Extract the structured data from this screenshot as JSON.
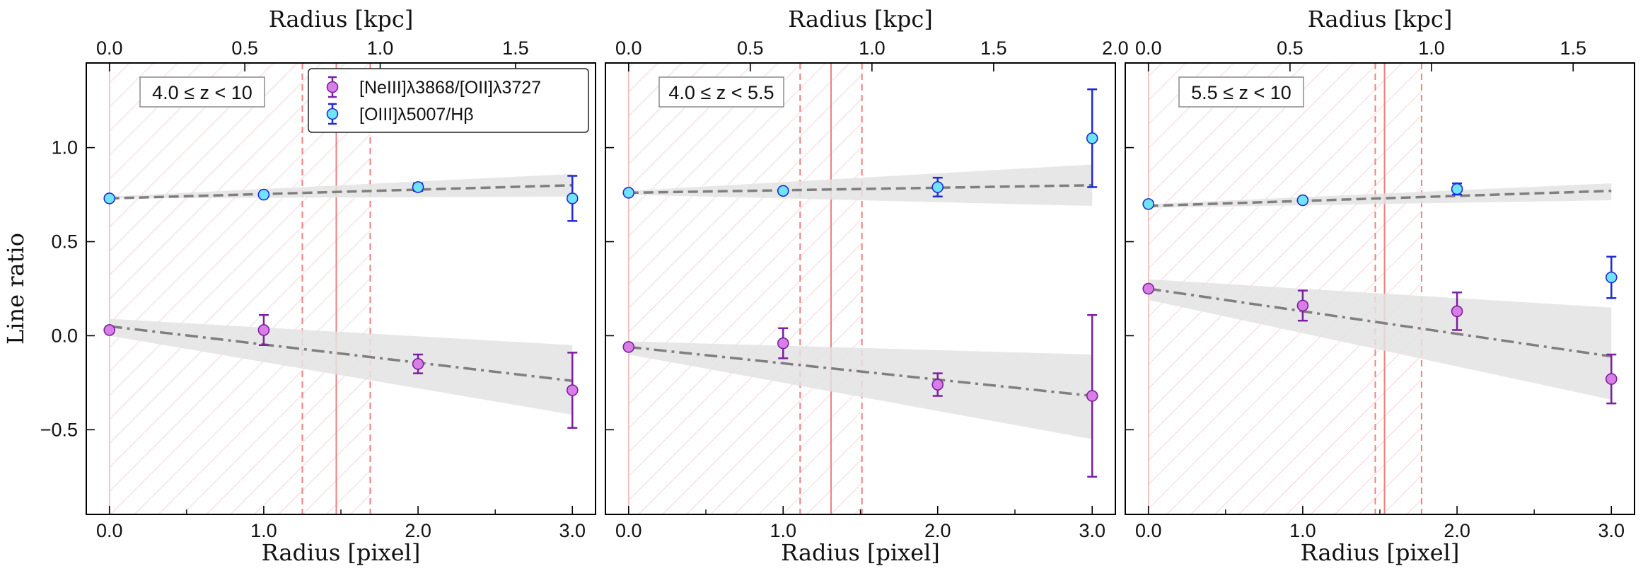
{
  "chart_data": [
    {
      "type": "scatter",
      "panel_label": "4.0 ≤ z < 10",
      "xlabel": "Radius [pixel]",
      "x2label": "Radius [kpc]",
      "ylabel": "Line ratio",
      "xticks": [
        "0.0",
        "1.0",
        "2.0",
        "3.0"
      ],
      "yticks": [
        "−0.5",
        "0.0",
        "0.5",
        "1.0"
      ],
      "x2ticks": [
        "0.0",
        "0.5",
        "1.0",
        "1.5"
      ],
      "x2_per_pixel": 0.57,
      "xlim": [
        -0.15,
        3.15
      ],
      "ylim": [
        -0.95,
        1.45
      ],
      "psf_line": 1.47,
      "psf_band": [
        1.25,
        1.69
      ],
      "series": [
        {
          "name": "[NeIII]λ3868/[OII]λ3727",
          "color": "#d97ee6",
          "edge": "#7b1fa2",
          "x": [
            0,
            1,
            2,
            3
          ],
          "y": [
            0.03,
            0.03,
            -0.15,
            -0.29
          ],
          "err": [
            0.0,
            0.08,
            0.05,
            0.2
          ]
        },
        {
          "name": "[OIII]λ5007/Hβ",
          "color": "#6ee4f4",
          "edge": "#1f2bd6",
          "x": [
            0,
            1,
            2,
            3
          ],
          "y": [
            0.73,
            0.75,
            0.79,
            0.73
          ],
          "err": [
            0.0,
            0.0,
            0.02,
            0.12
          ]
        }
      ],
      "fits": [
        {
          "style": "dashed",
          "x": [
            0,
            3
          ],
          "y": [
            0.73,
            0.8
          ],
          "band_lo": [
            0.73,
            0.74
          ],
          "band_hi": [
            0.74,
            0.86
          ]
        },
        {
          "style": "dashdot",
          "x": [
            0,
            3
          ],
          "y": [
            0.05,
            -0.24
          ],
          "band_lo": [
            0.0,
            -0.42
          ],
          "band_hi": [
            0.09,
            -0.05
          ]
        }
      ],
      "legend": true
    },
    {
      "type": "scatter",
      "panel_label": "4.0 ≤ z < 5.5",
      "xlabel": "Radius [pixel]",
      "x2label": "Radius [kpc]",
      "xticks": [
        "0.0",
        "1.0",
        "2.0",
        "3.0"
      ],
      "x2ticks": [
        "0.0",
        "0.5",
        "1.0",
        "1.5",
        "2.0"
      ],
      "x2_per_pixel": 0.635,
      "xlim": [
        -0.15,
        3.15
      ],
      "ylim": [
        -0.95,
        1.45
      ],
      "psf_line": 1.31,
      "psf_band": [
        1.11,
        1.51
      ],
      "series": [
        {
          "name": "[NeIII]λ3868/[OII]λ3727",
          "color": "#d97ee6",
          "edge": "#7b1fa2",
          "x": [
            0,
            1,
            2,
            3
          ],
          "y": [
            -0.06,
            -0.04,
            -0.26,
            -0.32
          ],
          "err": [
            0.0,
            0.08,
            0.06,
            0.43
          ]
        },
        {
          "name": "[OIII]λ5007/Hβ",
          "color": "#6ee4f4",
          "edge": "#1f2bd6",
          "x": [
            0,
            1,
            2,
            3
          ],
          "y": [
            0.76,
            0.77,
            0.79,
            1.05
          ],
          "err": [
            0.0,
            0.0,
            0.05,
            0.26
          ]
        }
      ],
      "fits": [
        {
          "style": "dashed",
          "x": [
            0,
            3
          ],
          "y": [
            0.76,
            0.8
          ],
          "band_lo": [
            0.75,
            0.69
          ],
          "band_hi": [
            0.77,
            0.91
          ]
        },
        {
          "style": "dashdot",
          "x": [
            0,
            3
          ],
          "y": [
            -0.06,
            -0.32
          ],
          "band_lo": [
            -0.1,
            -0.55
          ],
          "band_hi": [
            -0.03,
            -0.1
          ]
        }
      ],
      "legend": false
    },
    {
      "type": "scatter",
      "panel_label": "5.5 ≤ z < 10",
      "xlabel": "Radius [pixel]",
      "x2label": "Radius [kpc]",
      "xticks": [
        "0.0",
        "1.0",
        "2.0",
        "3.0"
      ],
      "x2ticks": [
        "0.0",
        "0.5",
        "1.0",
        "1.5"
      ],
      "x2_per_pixel": 0.545,
      "xlim": [
        -0.15,
        3.15
      ],
      "ylim": [
        -0.95,
        1.45
      ],
      "psf_line": 1.53,
      "psf_band": [
        1.47,
        1.77
      ],
      "series": [
        {
          "name": "[NeIII]λ3868/[OII]λ3727",
          "color": "#d97ee6",
          "edge": "#7b1fa2",
          "x": [
            0,
            1,
            2,
            3
          ],
          "y": [
            0.25,
            0.16,
            0.13,
            -0.23
          ],
          "err": [
            0.0,
            0.08,
            0.1,
            0.13
          ]
        },
        {
          "name": "[OIII]λ5007/Hβ",
          "color": "#6ee4f4",
          "edge": "#1f2bd6",
          "x": [
            0,
            1,
            2,
            3
          ],
          "y": [
            0.7,
            0.72,
            0.78,
            0.31
          ],
          "err": [
            0.0,
            0.0,
            0.03,
            0.11
          ]
        }
      ],
      "fits": [
        {
          "style": "dashed",
          "x": [
            0,
            3
          ],
          "y": [
            0.69,
            0.77
          ],
          "band_lo": [
            0.68,
            0.72
          ],
          "band_hi": [
            0.7,
            0.81
          ]
        },
        {
          "style": "dashdot",
          "x": [
            0,
            3
          ],
          "y": [
            0.25,
            -0.11
          ],
          "band_lo": [
            0.19,
            -0.34
          ],
          "band_hi": [
            0.3,
            0.15
          ]
        }
      ],
      "legend": false
    }
  ],
  "colors": {
    "psf_line": "#f08080",
    "psf_hatch": "#f4b8b8",
    "fit_line": "#7f7f7f",
    "fit_band": "#e3e3e3"
  }
}
